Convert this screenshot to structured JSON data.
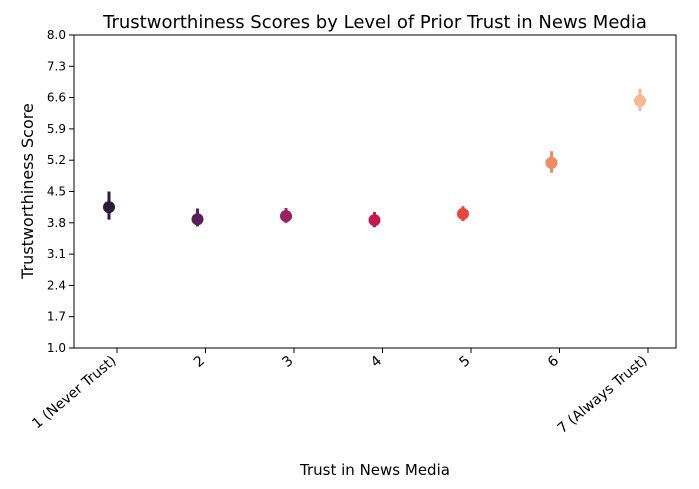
{
  "chart_data": {
    "type": "scatter",
    "title": "Trustworthiness Scores by Level of Prior Trust in News Media",
    "xlabel": "Trust in News Media",
    "ylabel": "Trustworthiness Score",
    "categories": [
      "1 (Never Trust)",
      "2",
      "3",
      "4",
      "5",
      "6",
      "7 (Always Trust)"
    ],
    "values": [
      4.15,
      3.88,
      3.95,
      3.86,
      4.0,
      5.14,
      6.53
    ],
    "ci_low": [
      3.87,
      3.72,
      3.8,
      3.7,
      3.84,
      4.92,
      6.3
    ],
    "ci_high": [
      4.5,
      4.12,
      4.13,
      4.04,
      4.17,
      5.4,
      6.8
    ],
    "colors": [
      "#2d1a3e",
      "#5a1f5a",
      "#9a1f63",
      "#c41b4e",
      "#e8453e",
      "#f08a62",
      "#f5b88f"
    ],
    "ylim": [
      1.0,
      8.0
    ],
    "yticks": [
      "1.0",
      "1.7",
      "2.4",
      "3.1",
      "3.8",
      "4.5",
      "5.2",
      "5.9",
      "6.6",
      "7.3",
      "8.0"
    ],
    "grid": false,
    "legend": "none"
  }
}
